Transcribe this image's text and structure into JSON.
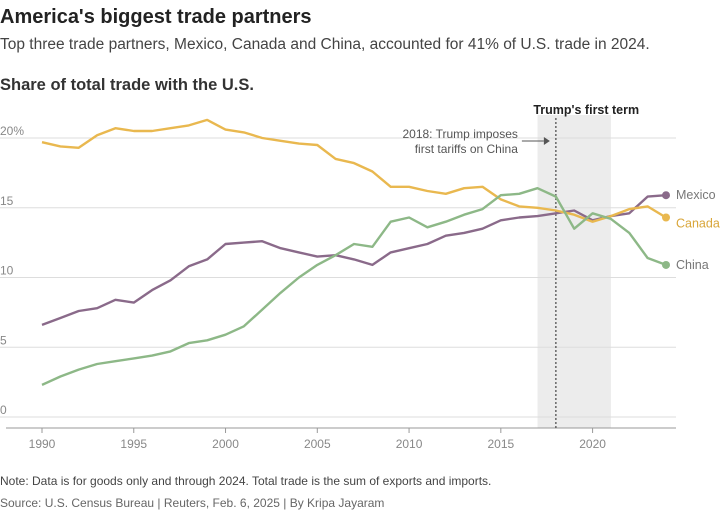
{
  "title": "America's biggest trade partners",
  "subtitle": "Top three trade partners, Mexico, Canada and China, accounted for 41% of U.S. trade in 2024.",
  "note": "Note: Data is for goods only and through 2024. Total trade is the sum of exports and imports.",
  "source": "Source: U.S. Census Bureau | Reuters, Feb. 6, 2025 | By Kripa Jayaram",
  "chart_data": {
    "type": "line",
    "title": "Share of total trade with the U.S.",
    "x": [
      1990,
      1991,
      1992,
      1993,
      1994,
      1995,
      1996,
      1997,
      1998,
      1999,
      2000,
      2001,
      2002,
      2003,
      2004,
      2005,
      2006,
      2007,
      2008,
      2009,
      2010,
      2011,
      2012,
      2013,
      2014,
      2015,
      2016,
      2017,
      2018,
      2019,
      2020,
      2021,
      2022,
      2023,
      2024
    ],
    "xticks": [
      "1990",
      "1995",
      "2000",
      "2005",
      "2010",
      "2015",
      "2020"
    ],
    "yticks": [
      "20%",
      "15",
      "10",
      "5",
      "0"
    ],
    "ytick_values": [
      20,
      15,
      10,
      5,
      0
    ],
    "ylim": [
      0,
      21.5
    ],
    "xlim": [
      1989.3,
      2025
    ],
    "grid": true,
    "series": [
      {
        "name": "Mexico",
        "color": "#8a6a8a",
        "values": [
          6.6,
          7.1,
          7.6,
          7.8,
          8.4,
          8.2,
          9.1,
          9.8,
          10.8,
          11.3,
          12.4,
          12.5,
          12.6,
          12.1,
          11.8,
          11.5,
          11.6,
          11.3,
          10.9,
          11.8,
          12.1,
          12.4,
          13.0,
          13.2,
          13.5,
          14.1,
          14.3,
          14.4,
          14.6,
          14.8,
          14.1,
          14.4,
          14.6,
          15.8,
          15.9
        ]
      },
      {
        "name": "Canada",
        "color": "#e9b84f",
        "values": [
          19.7,
          19.4,
          19.3,
          20.2,
          20.7,
          20.5,
          20.5,
          20.7,
          20.9,
          21.3,
          20.6,
          20.4,
          20.0,
          19.8,
          19.6,
          19.5,
          18.5,
          18.2,
          17.6,
          16.5,
          16.5,
          16.2,
          16.0,
          16.4,
          16.5,
          15.6,
          15.1,
          15.0,
          14.8,
          14.5,
          14.0,
          14.4,
          14.9,
          15.1,
          14.3
        ]
      },
      {
        "name": "China",
        "color": "#8db887",
        "values": [
          2.3,
          2.9,
          3.4,
          3.8,
          4.0,
          4.2,
          4.4,
          4.7,
          5.3,
          5.5,
          5.9,
          6.5,
          7.7,
          8.9,
          10.0,
          10.9,
          11.6,
          12.4,
          12.2,
          14.0,
          14.3,
          13.6,
          14.0,
          14.5,
          14.9,
          15.9,
          16.0,
          16.4,
          15.8,
          13.5,
          14.6,
          14.2,
          13.2,
          11.4,
          10.9
        ]
      }
    ],
    "highlight_band": {
      "label": "Trump's first term",
      "x_start": 2017,
      "x_end": 2021
    },
    "annotation": {
      "lines": [
        "2018: Trump imposes",
        "first tariffs on China"
      ],
      "x": 2018
    }
  }
}
